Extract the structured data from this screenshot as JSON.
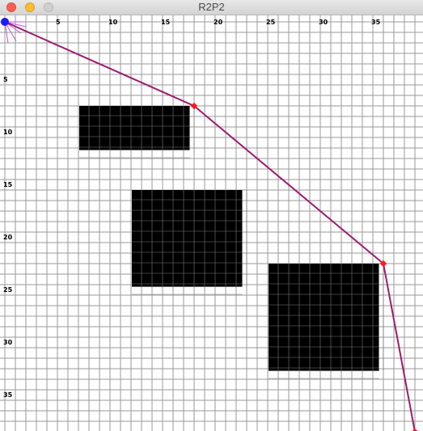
{
  "window": {
    "title": "R2P2",
    "buttons": [
      "close",
      "minimize",
      "zoom"
    ]
  },
  "colors": {
    "grid": "#9a9a9a",
    "obstacle": "#000000",
    "path": "#9b1c6e",
    "waypoint": "#ff1a1a",
    "robot": "#1a1aff",
    "sensor": "#c05ad6"
  },
  "chart_data": {
    "type": "grid-map",
    "x_ticks": [
      "5",
      "10",
      "15",
      "20",
      "25",
      "30",
      "35"
    ],
    "y_ticks": [
      "5",
      "10",
      "15",
      "20",
      "25",
      "30",
      "35"
    ],
    "obstacles": [
      {
        "x0": 7,
        "y0": 8,
        "x1": 17,
        "y1": 12
      },
      {
        "x0": 12,
        "y0": 16,
        "x1": 22,
        "y1": 25
      },
      {
        "x0": 25,
        "y0": 23,
        "x1": 35,
        "y1": 33
      }
    ],
    "path": [
      {
        "x": 0,
        "y": 0
      },
      {
        "x": 18,
        "y": 8
      },
      {
        "x": 36,
        "y": 23
      },
      {
        "x": 39,
        "y": 39
      }
    ],
    "robot": {
      "x": 0,
      "y": 0
    },
    "grid_size": 40
  }
}
